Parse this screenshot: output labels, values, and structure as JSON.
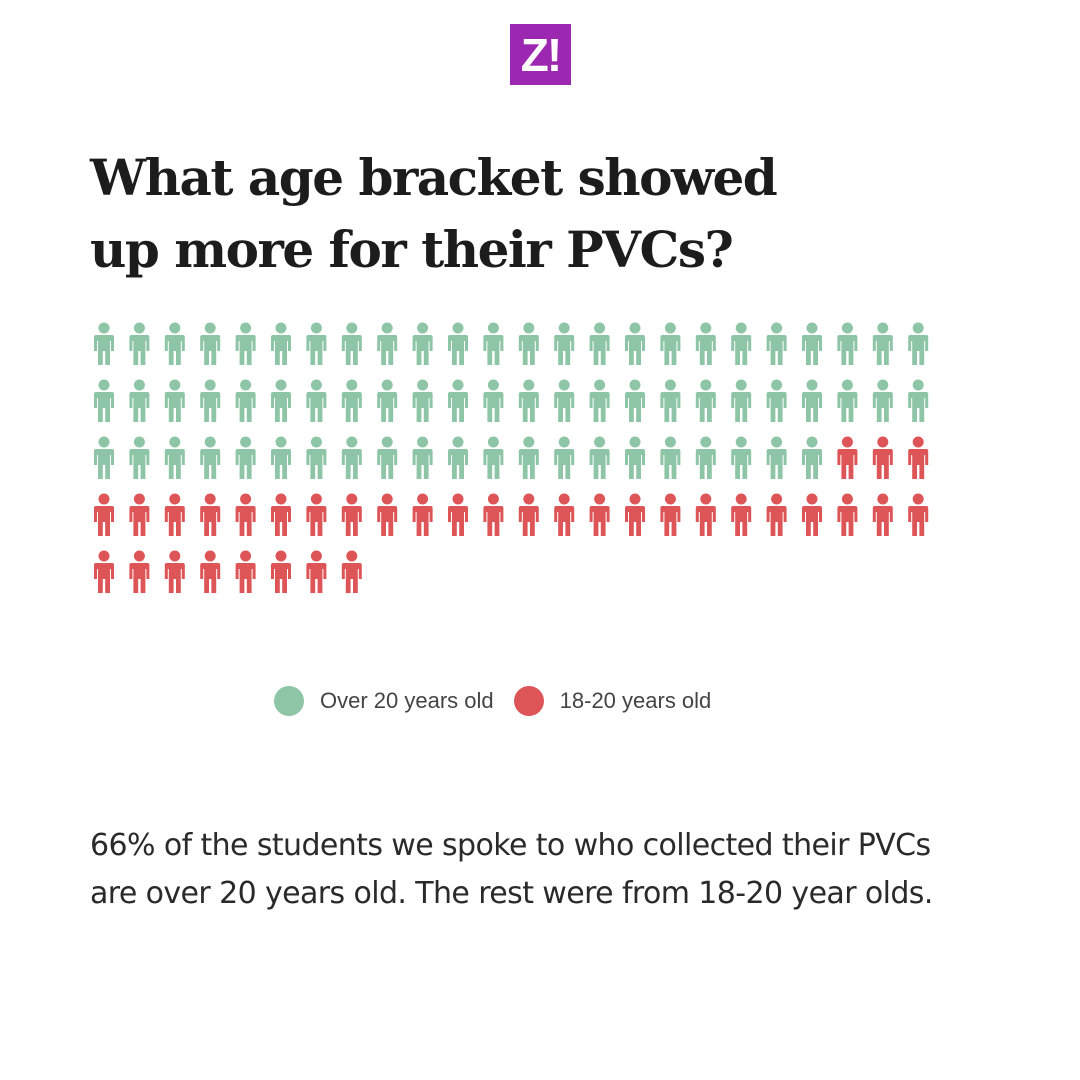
{
  "brand": {
    "logo_text": "Z!",
    "logo_color": "#9c27b0"
  },
  "title": "What age bracket showed up more for their PVCs?",
  "colors": {
    "over_20": "#8ec5a6",
    "age_18_20": "#de5558"
  },
  "chart_data": {
    "type": "pictogram",
    "icon": "person-icon",
    "icons_per_row": 24,
    "total_icons": 104,
    "series": [
      {
        "name": "Over 20 years old",
        "count": 69,
        "color": "#8ec5a6"
      },
      {
        "name": "18-20 years old",
        "count": 35,
        "color": "#de5558"
      }
    ]
  },
  "legend": {
    "items": [
      {
        "label": "Over 20 years old",
        "color": "#8ec5a6"
      },
      {
        "label": "18-20 years old",
        "color": "#de5558"
      }
    ]
  },
  "caption": "66% of the students we spoke to who collected their PVCs are over 20 years old. The rest were from 18-20 year olds."
}
